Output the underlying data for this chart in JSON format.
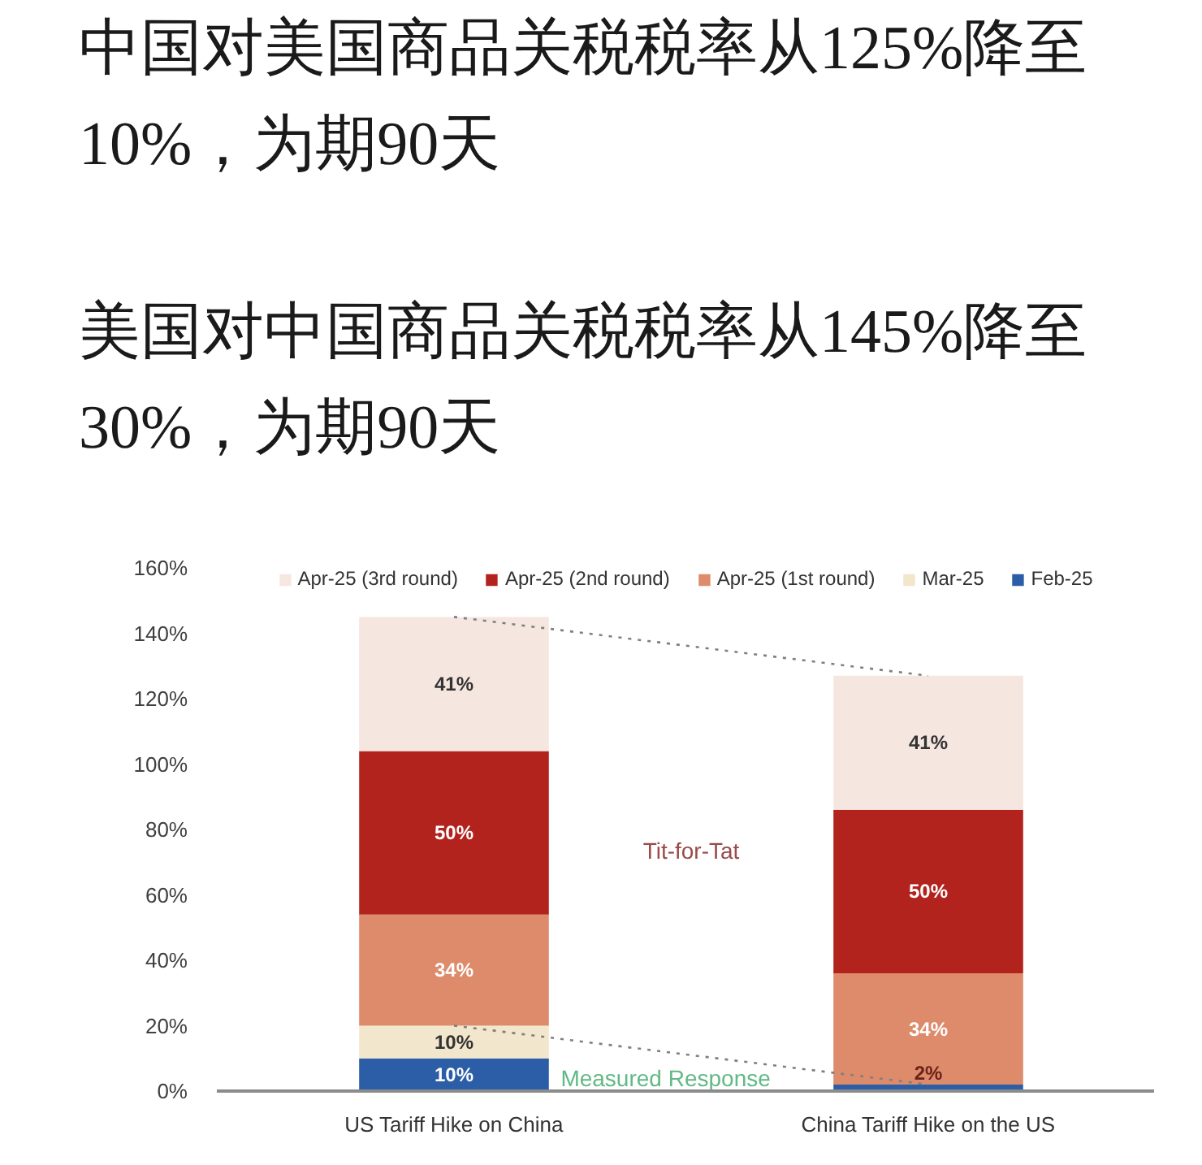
{
  "chart_data": {
    "type": "bar",
    "title": "中国对美国商品关税税率从125%降至10%，为期90天",
    "subtitle": "美国对中国商品关税税率从145%降至30%，为期90天",
    "categories": [
      "US Tariff Hike on China",
      "China Tariff Hike on the US"
    ],
    "stacked": true,
    "series": [
      {
        "name": "Feb-25",
        "color": "#2b5ea7",
        "values": [
          10,
          2
        ],
        "value_labels": [
          "10%",
          "2%"
        ]
      },
      {
        "name": "Mar-25",
        "color": "#f2e6cc",
        "values": [
          10,
          null
        ],
        "value_labels": [
          "10%",
          null
        ]
      },
      {
        "name": "Apr-25 (1st round)",
        "color": "#dd8b6b",
        "values": [
          34,
          34
        ],
        "value_labels": [
          "34%",
          "34%"
        ]
      },
      {
        "name": "Apr-25 (2nd round)",
        "color": "#b3231e",
        "values": [
          50,
          50
        ],
        "value_labels": [
          "50%",
          "50%"
        ]
      },
      {
        "name": "Apr-25 (3rd round)",
        "color": "#f6e6e0",
        "values": [
          41,
          41
        ],
        "value_labels": [
          "41%",
          "41%"
        ]
      },
      {
        "type": "line",
        "color": "#7f7f7f",
        "values": [
          145,
          127
        ]
      },
      {
        "type": "line",
        "color": "#7f7f7f",
        "values": [
          20,
          2
        ]
      }
    ],
    "ylim": [
      0,
      160
    ],
    "yticks": [
      {
        "value": 0,
        "label": "0%"
      },
      {
        "value": 20,
        "label": "20%"
      },
      {
        "value": 40,
        "label": "40%"
      },
      {
        "value": 60,
        "label": "60%"
      },
      {
        "value": 80,
        "label": "80%"
      },
      {
        "value": 100,
        "label": "100%"
      },
      {
        "value": 120,
        "label": "120%"
      },
      {
        "value": 140,
        "label": "140%"
      },
      {
        "value": 160,
        "label": "160%"
      }
    ],
    "grid": false,
    "legend": "top",
    "line_style": "dotted",
    "annotations": [
      "Tit-for-Tat",
      "Measured Response"
    ]
  }
}
